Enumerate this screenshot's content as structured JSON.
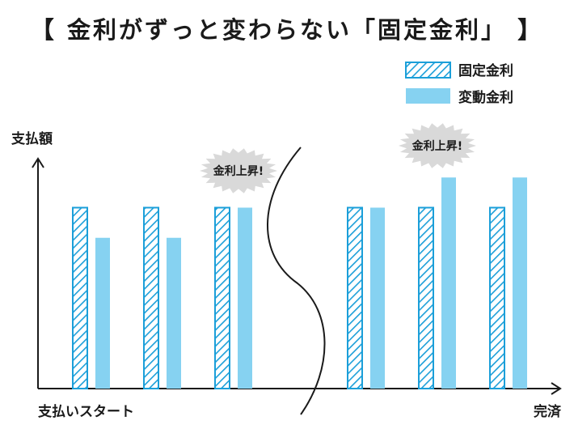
{
  "title": "【 金利がずっと変わらない「固定金利」 】",
  "chart_data": {
    "type": "bar",
    "title": "【 金利がずっと変わらない「固定金利」 】",
    "ylabel": "支払額",
    "x_start_label": "支払いスタート",
    "x_end_label": "完済",
    "ylim": [
      0,
      8
    ],
    "axis_break": "between group 3 and group 4",
    "categories": [
      "",
      "",
      "",
      "",
      "",
      ""
    ],
    "series": [
      {
        "name": "固定金利",
        "values": [
          6,
          6,
          6,
          6,
          6,
          6
        ],
        "pattern": "hatched"
      },
      {
        "name": "変動金利",
        "values": [
          5,
          5,
          6,
          6,
          7,
          7
        ],
        "pattern": "solid"
      }
    ],
    "annotations": [
      {
        "text": "金利上昇!",
        "near_group": 3
      },
      {
        "text": "金利上昇!",
        "near_group": 5
      }
    ],
    "legend": "top-right",
    "grid": false,
    "colors": {
      "fixed_stroke": "#1b9fd9",
      "variable_fill": "#86d2f1",
      "axis": "#1a1a1a",
      "burst": "#d9d9d9"
    }
  }
}
